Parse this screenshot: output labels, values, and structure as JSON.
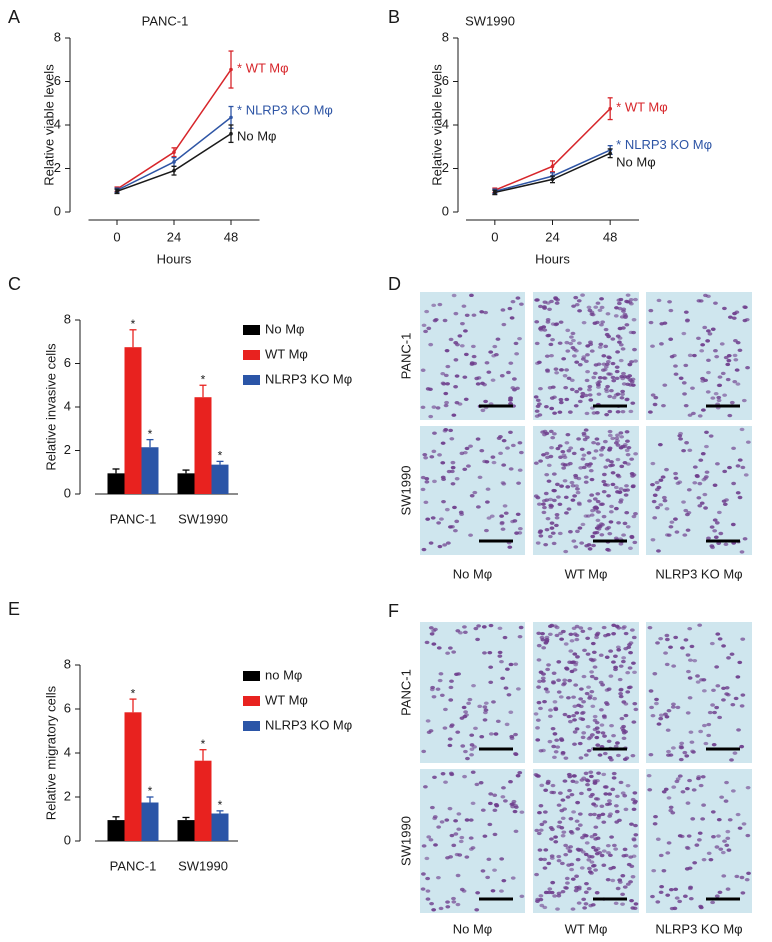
{
  "chart_data": [
    {
      "panel": "A",
      "type": "line",
      "title": "PANC-1",
      "x_label": "Hours",
      "y_label": "Relative viable levels",
      "x": [
        0,
        24,
        48
      ],
      "xlim": [
        -12,
        60
      ],
      "xticks": [
        0,
        24,
        48
      ],
      "ylim": [
        0,
        8
      ],
      "yticks": [
        0,
        2,
        4,
        6,
        8
      ],
      "series": [
        {
          "name": "WT Mφ",
          "sig": "*",
          "color": "#d7262b",
          "values": [
            1.05,
            2.75,
            6.55
          ],
          "errors": [
            0.1,
            0.2,
            0.85
          ]
        },
        {
          "name": "NLRP3 KO Mφ",
          "sig": "*",
          "color": "#2e55a5",
          "values": [
            1.0,
            2.3,
            4.35
          ],
          "errors": [
            0.1,
            0.2,
            0.5
          ]
        },
        {
          "name": "No Mφ",
          "color": "#1a1a1a",
          "values": [
            0.95,
            1.9,
            3.6
          ],
          "errors": [
            0.1,
            0.2,
            0.4
          ]
        }
      ]
    },
    {
      "panel": "B",
      "type": "line",
      "title": "SW1990",
      "x_label": "Hours",
      "y_label": "Relative viable levels",
      "x": [
        0,
        24,
        48
      ],
      "xlim": [
        -12,
        60
      ],
      "xticks": [
        0,
        24,
        48
      ],
      "ylim": [
        0,
        8
      ],
      "yticks": [
        0,
        2,
        4,
        6,
        8
      ],
      "series": [
        {
          "name": "WT Mφ",
          "sig": "*",
          "color": "#d7262b",
          "values": [
            1.0,
            2.1,
            4.75
          ],
          "errors": [
            0.1,
            0.25,
            0.5
          ]
        },
        {
          "name": "NLRP3 KO Mφ",
          "sig": "*",
          "color": "#2e55a5",
          "values": [
            0.95,
            1.65,
            2.85
          ],
          "errors": [
            0.1,
            0.15,
            0.2
          ]
        },
        {
          "name": "No Mφ",
          "color": "#1a1a1a",
          "values": [
            0.9,
            1.5,
            2.7
          ],
          "errors": [
            0.1,
            0.15,
            0.2
          ]
        }
      ]
    },
    {
      "panel": "C",
      "type": "bar",
      "y_label": "Relative invasive cells",
      "categories": [
        "PANC-1",
        "SW1990"
      ],
      "ylim": [
        0,
        8
      ],
      "yticks": [
        0,
        2,
        4,
        6,
        8
      ],
      "series": [
        {
          "name": "No Mφ",
          "color": "#000000",
          "values": [
            0.95,
            0.95
          ],
          "errors": [
            0.2,
            0.15
          ]
        },
        {
          "name": "WT Mφ",
          "sig": "*",
          "color": "#e8221f",
          "values": [
            6.75,
            4.45
          ],
          "errors": [
            0.8,
            0.55
          ]
        },
        {
          "name": "NLRP3 KO Mφ",
          "sig": "*",
          "color": "#2b55a7",
          "values": [
            2.15,
            1.35
          ],
          "errors": [
            0.35,
            0.15
          ]
        }
      ]
    },
    {
      "panel": "E",
      "type": "bar",
      "y_label": "Relative migratory cells",
      "categories": [
        "PANC-1",
        "SW1990"
      ],
      "ylim": [
        0,
        8
      ],
      "yticks": [
        0,
        2,
        4,
        6,
        8
      ],
      "series": [
        {
          "name": "no Mφ",
          "color": "#000000",
          "values": [
            0.95,
            0.95
          ],
          "errors": [
            0.15,
            0.12
          ]
        },
        {
          "name": "WT Mφ",
          "sig": "*",
          "color": "#e8221f",
          "values": [
            5.85,
            3.65
          ],
          "errors": [
            0.6,
            0.5
          ]
        },
        {
          "name": "NLRP3 KO Mφ",
          "sig": "*",
          "color": "#2b55a7",
          "values": [
            1.75,
            1.25
          ],
          "errors": [
            0.25,
            0.12
          ]
        }
      ]
    }
  ],
  "image_panels": [
    {
      "panel": "D",
      "rows": [
        "PANC-1",
        "SW1990"
      ],
      "columns": [
        "No Mφ",
        "WT Mφ",
        "NLRP3 KO Mφ"
      ],
      "column_colors": [
        "#1a1a1a",
        "#e8221f",
        "#2b55a7"
      ]
    },
    {
      "panel": "F",
      "rows": [
        "PANC-1",
        "SW1990"
      ],
      "columns": [
        "No Mφ",
        "WT Mφ",
        "NLRP3 KO Mφ"
      ],
      "column_colors": [
        "#1a1a1a",
        "#e8221f",
        "#2b55a7"
      ]
    }
  ]
}
